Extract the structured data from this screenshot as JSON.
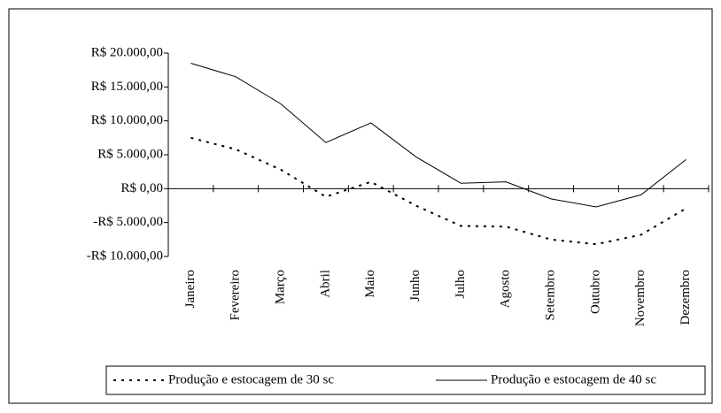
{
  "chart_data": {
    "type": "line",
    "categories": [
      "Janeiro",
      "Fevereiro",
      "Março",
      "Abril",
      "Maio",
      "Junho",
      "Julho",
      "Agosto",
      "Setembro",
      "Outubro",
      "Novembro",
      "Dezembro"
    ],
    "series": [
      {
        "name": "Produção e estocagem de 30 sc",
        "color": "#000000",
        "dash": true,
        "values": [
          7500,
          5800,
          2800,
          -1200,
          1000,
          -2500,
          -5500,
          -5600,
          -7500,
          -8200,
          -6800,
          -2900
        ]
      },
      {
        "name": "Produção e estocagem de 40 sc",
        "color": "#000000",
        "dash": false,
        "values": [
          18500,
          16500,
          12500,
          6800,
          9700,
          4700,
          800,
          1000,
          -1500,
          -2700,
          -900,
          4300
        ]
      }
    ],
    "ylim": [
      -10000,
      20000
    ],
    "yticks": [
      {
        "value": 20000,
        "label": "R$ 20.000,00"
      },
      {
        "value": 15000,
        "label": "R$ 15.000,00"
      },
      {
        "value": 10000,
        "label": "R$ 10.000,00"
      },
      {
        "value": 5000,
        "label": "R$ 5.000,00"
      },
      {
        "value": 0,
        "label": "R$ 0,00"
      },
      {
        "value": -5000,
        "label": "-R$ 5.000,00"
      },
      {
        "value": -10000,
        "label": "-R$ 10.000,00"
      }
    ],
    "grid": false,
    "legend": "bottom"
  }
}
